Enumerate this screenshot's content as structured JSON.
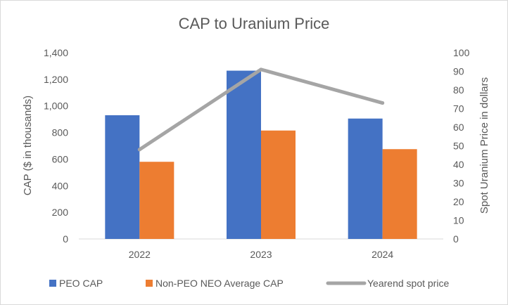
{
  "chart_data": {
    "type": "bar",
    "title": "CAP to Uranium Price",
    "categories": [
      "2022",
      "2023",
      "2024"
    ],
    "series": [
      {
        "name": "PEO CAP",
        "kind": "bar",
        "axis": "left",
        "color": "#4472c4",
        "values": [
          930,
          1265,
          905
        ]
      },
      {
        "name": "Non-PEO NEO Average CAP",
        "kind": "bar",
        "axis": "left",
        "color": "#ed7d31",
        "values": [
          580,
          815,
          675
        ]
      },
      {
        "name": "Yearend spot price",
        "kind": "line",
        "axis": "right",
        "color": "#a5a5a5",
        "values": [
          48,
          91,
          73
        ]
      }
    ],
    "ylabel": "CAP ($ in thousands)",
    "ylim": [
      0,
      1400
    ],
    "yticks": [
      "0",
      "200",
      "400",
      "600",
      "800",
      "1,000",
      "1,200",
      "1,400"
    ],
    "y2label": "Spot Uranium Price in dollars",
    "y2lim": [
      0,
      100
    ],
    "y2ticks": [
      "0",
      "10",
      "20",
      "30",
      "40",
      "50",
      "60",
      "70",
      "80",
      "90",
      "100"
    ],
    "grid": false,
    "legend": "bottom"
  }
}
